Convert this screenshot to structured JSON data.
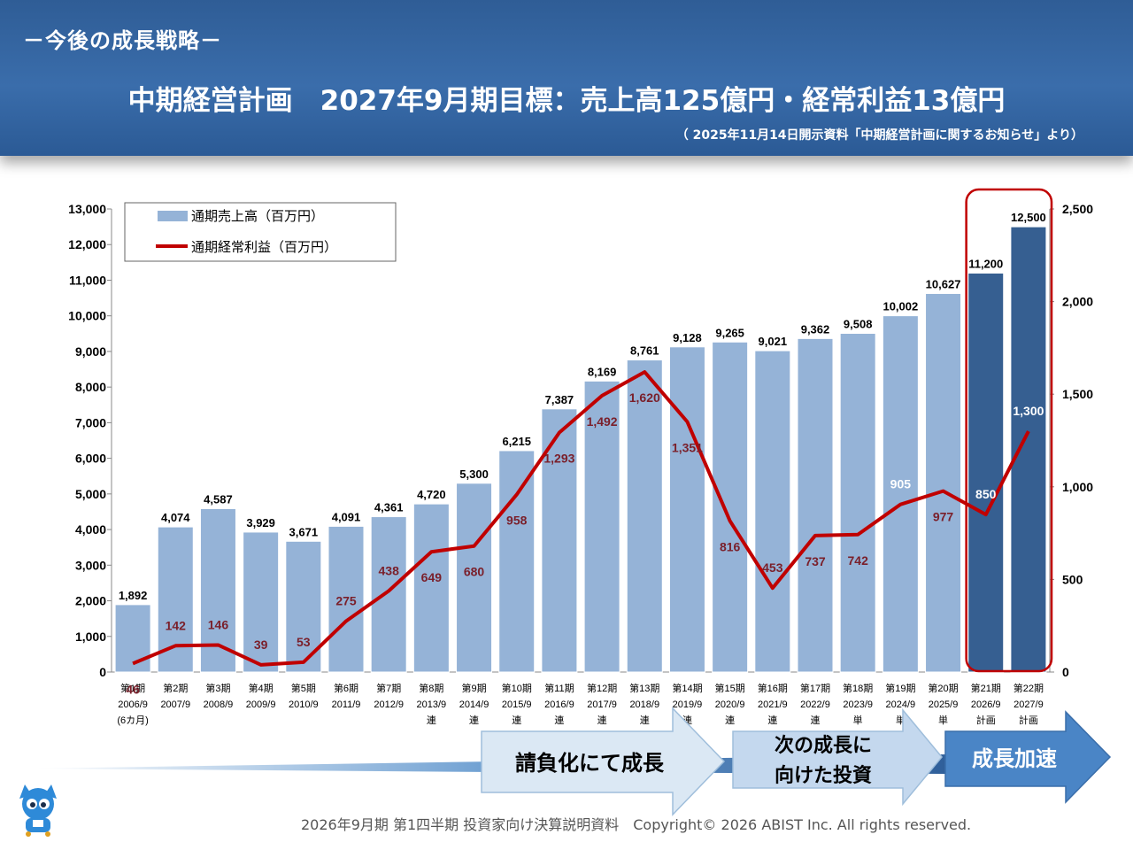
{
  "header": {
    "section_title": "－今後の成長戦略－",
    "main_title": "中期経営計画　2027年9月期目標：売上高125億円・経常利益13億円",
    "source_note": "（ 2025年11月14日開示資料「中期経営計画に関するお知らせ」より）"
  },
  "chart_data": {
    "type": "bar+line",
    "categories": [
      "第1期",
      "第2期",
      "第3期",
      "第4期",
      "第5期",
      "第6期",
      "第7期",
      "第8期",
      "第9期",
      "第10期",
      "第11期",
      "第12期",
      "第13期",
      "第14期",
      "第15期",
      "第16期",
      "第17期",
      "第18期",
      "第19期",
      "第20期",
      "第21期",
      "第22期"
    ],
    "category_dates": [
      "2006/9",
      "2007/9",
      "2008/9",
      "2009/9",
      "2010/9",
      "2011/9",
      "2012/9",
      "2013/9",
      "2014/9",
      "2015/9",
      "2016/9",
      "2017/9",
      "2018/9",
      "2019/9",
      "2020/9",
      "2021/9",
      "2022/9",
      "2023/9",
      "2024/9",
      "2025/9",
      "2026/9",
      "2027/9"
    ],
    "category_notes": [
      "(6カ月)",
      "",
      "",
      "",
      "",
      "",
      "",
      "連",
      "連",
      "連",
      "連",
      "連",
      "連",
      "連",
      "連",
      "連",
      "連",
      "単",
      "単",
      "単",
      "計画",
      "計画"
    ],
    "series": [
      {
        "name": "通期売上高（百万円）",
        "type": "bar",
        "axis": "left",
        "values": [
          1892,
          4074,
          4587,
          3929,
          3671,
          4091,
          4361,
          4720,
          5300,
          6215,
          7387,
          8169,
          8761,
          9128,
          9265,
          9021,
          9362,
          9508,
          10002,
          10627,
          11200,
          12500
        ],
        "labels": [
          "1,892",
          "4,074",
          "4,587",
          "3,929",
          "3,671",
          "4,091",
          "4,361",
          "4,720",
          "5,300",
          "6,215",
          "7,387",
          "8,169",
          "8,761",
          "9,128",
          "9,265",
          "9,021",
          "9,362",
          "9,508",
          "10,002",
          "10,627",
          "11,200",
          "12,500"
        ]
      },
      {
        "name": "通期経常利益（百万円）",
        "type": "line",
        "axis": "right",
        "values": [
          46,
          142,
          146,
          39,
          53,
          275,
          438,
          649,
          680,
          958,
          1293,
          1492,
          1620,
          1351,
          816,
          453,
          737,
          742,
          905,
          977,
          850,
          1300
        ],
        "labels": [
          "46",
          "142",
          "146",
          "39",
          "53",
          "275",
          "438",
          "649",
          "680",
          "958",
          "1,293",
          "1,492",
          "1,620",
          "1,351",
          "816",
          "453",
          "737",
          "742",
          "905",
          "977",
          "850",
          "1,300"
        ]
      }
    ],
    "y_left": {
      "range": [
        0,
        13000
      ],
      "ticks": [
        "0",
        "1,000",
        "2,000",
        "3,000",
        "4,000",
        "5,000",
        "6,000",
        "7,000",
        "8,000",
        "9,000",
        "10,000",
        "11,000",
        "12,000",
        "13,000"
      ]
    },
    "y_right": {
      "range": [
        0,
        2500
      ],
      "ticks": [
        "0",
        "500",
        "1,000",
        "1,500",
        "2,000",
        "2,500"
      ]
    },
    "highlight_categories": [
      20,
      21
    ],
    "legend_position": "top-left",
    "colors": {
      "bar": "#95b3d7",
      "bar_plan": "#365f91",
      "line": "#c00000",
      "line_label": "#7a1f2a",
      "highlight_box": "#c00000"
    }
  },
  "stages": [
    {
      "label": "請負化にて成長"
    },
    {
      "label_line1": "次の成長に",
      "label_line2": "向けた投資"
    },
    {
      "label": "成長加速"
    }
  ],
  "footer": {
    "text": "2026年9月期 第1四半期 投資家向け決算説明資料　Copyright© 2026 ABIST Inc. All rights reserved."
  }
}
